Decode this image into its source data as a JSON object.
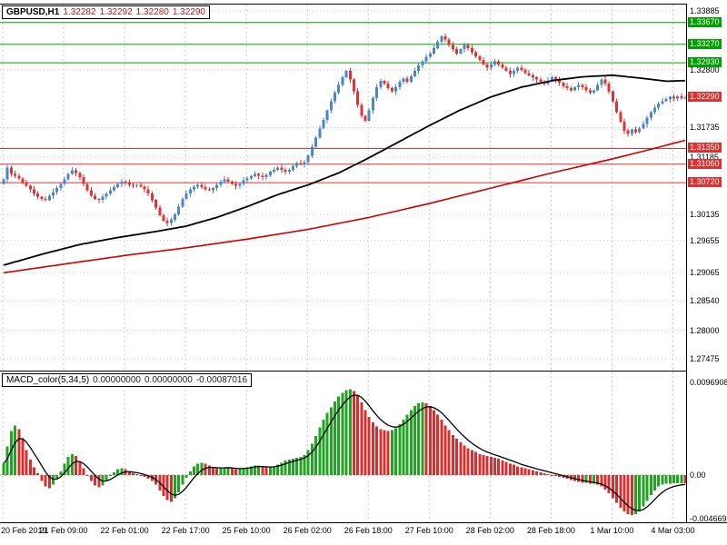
{
  "header": {
    "symbol": "GBPUSD,H1",
    "open": "1.32282",
    "high": "1.32292",
    "low": "1.32280",
    "close": "1.32290"
  },
  "macd_header": {
    "name": "MACD_color(5,34,5)",
    "value1": "0.00000000",
    "value2": "0.00000000",
    "value3": "-0.00087016"
  },
  "colors": {
    "bull": "#4a86c8",
    "bear": "#dc3434",
    "ma_fast": "#000000",
    "ma_slow": "#cc0000",
    "level_green": "#00a000",
    "level_red": "#e03030",
    "hist_up": "#1fa51f",
    "hist_down": "#d43030",
    "grid": "#c9c9c9",
    "signal": "#000000"
  },
  "chart_data": {
    "type": "candlestick",
    "symbol": "GBPUSD",
    "timeframe": "H1",
    "price_axis": {
      "max": 1.33885,
      "min": 1.27475,
      "ticks": [
        "1.33885",
        "1.32800",
        "1.31735",
        "1.31185",
        "1.30135",
        "1.29655",
        "1.29065",
        "1.28540",
        "1.28000",
        "1.27475"
      ]
    },
    "levels": [
      {
        "label": "1.33670",
        "price": 1.3367,
        "color": "green",
        "line": true
      },
      {
        "label": "1.33270",
        "price": 1.3327,
        "color": "green",
        "line": true
      },
      {
        "label": "1.32930",
        "price": 1.3293,
        "color": "green",
        "line": true
      },
      {
        "label": "1.32290",
        "price": 1.3229,
        "color": "red",
        "line": false,
        "current": true
      },
      {
        "label": "1.31350",
        "price": 1.3135,
        "color": "red",
        "line": true
      },
      {
        "label": "1.31060",
        "price": 1.3106,
        "color": "red",
        "line": true
      },
      {
        "label": "1.30720",
        "price": 1.3072,
        "color": "red",
        "line": true
      }
    ],
    "time_labels": [
      "20 Feb 2019",
      "21 Feb 09:00",
      "22 Feb 01:00",
      "22 Feb 17:00",
      "25 Feb 10:00",
      "26 Feb 02:00",
      "26 Feb 18:00",
      "27 Feb 10:00",
      "28 Feb 02:00",
      "28 Feb 18:00",
      "1 Mar 10:00",
      "4 Mar 03:00"
    ],
    "candles_per_gridline": 16,
    "first_open": 1.307,
    "closes": [
      1.3078,
      1.31,
      1.3088,
      1.3085,
      1.308,
      1.3072,
      1.3066,
      1.306,
      1.3052,
      1.3046,
      1.3042,
      1.304,
      1.3048,
      1.3055,
      1.3062,
      1.307,
      1.3078,
      1.3088,
      1.3095,
      1.309,
      1.3082,
      1.307,
      1.3058,
      1.3048,
      1.3042,
      1.304,
      1.3046,
      1.3052,
      1.3058,
      1.3064,
      1.307,
      1.3074,
      1.3072,
      1.3068,
      1.3066,
      1.3068,
      1.3065,
      1.306,
      1.3052,
      1.304,
      1.3026,
      1.3012,
      1.3002,
      1.2998,
      1.3004,
      1.3014,
      1.3028,
      1.3042,
      1.3052,
      1.306,
      1.3065,
      1.3068,
      1.3064,
      1.306,
      1.3058,
      1.3062,
      1.3068,
      1.3074,
      1.3078,
      1.3074,
      1.307,
      1.3066,
      1.307,
      1.3076,
      1.308,
      1.3084,
      1.3088,
      1.3085,
      1.3082,
      1.3086,
      1.3092,
      1.3096,
      1.31,
      1.3096,
      1.3092,
      1.3096,
      1.3102,
      1.3108,
      1.3106,
      1.311,
      1.3122,
      1.3138,
      1.3155,
      1.3172,
      1.3188,
      1.3205,
      1.3222,
      1.3238,
      1.3252,
      1.3266,
      1.3278,
      1.3262,
      1.324,
      1.3215,
      1.3195,
      1.3186,
      1.3205,
      1.3228,
      1.3248,
      1.326,
      1.3255,
      1.3246,
      1.324,
      1.3248,
      1.3258,
      1.3264,
      1.3258,
      1.3268,
      1.3278,
      1.3288,
      1.3296,
      1.3304,
      1.331,
      1.332,
      1.3332,
      1.3342,
      1.3336,
      1.3326,
      1.3318,
      1.331,
      1.3318,
      1.3326,
      1.332,
      1.3312,
      1.3305,
      1.3298,
      1.329,
      1.3284,
      1.329,
      1.3296,
      1.329,
      1.3284,
      1.3278,
      1.3272,
      1.3278,
      1.3284,
      1.328,
      1.3274,
      1.327,
      1.3266,
      1.3262,
      1.3258,
      1.3254,
      1.326,
      1.3266,
      1.3262,
      1.3256,
      1.325,
      1.3246,
      1.3242,
      1.3248,
      1.3252,
      1.3248,
      1.3242,
      1.3238,
      1.3242,
      1.3252,
      1.3262,
      1.3255,
      1.324,
      1.3222,
      1.3202,
      1.3184,
      1.3168,
      1.3162,
      1.317,
      1.3165,
      1.3172,
      1.318,
      1.3192,
      1.3202,
      1.321,
      1.3218,
      1.3222,
      1.3226,
      1.323,
      1.3227,
      1.3231,
      1.3228,
      1.3229
    ],
    "ma_fast_anchors": [
      [
        0,
        1.292
      ],
      [
        10,
        1.294
      ],
      [
        20,
        1.2958
      ],
      [
        30,
        1.2971
      ],
      [
        40,
        1.2982
      ],
      [
        48,
        1.2992
      ],
      [
        56,
        1.3008
      ],
      [
        64,
        1.3028
      ],
      [
        72,
        1.305
      ],
      [
        80,
        1.3068
      ],
      [
        88,
        1.309
      ],
      [
        96,
        1.3118
      ],
      [
        104,
        1.3148
      ],
      [
        112,
        1.3178
      ],
      [
        120,
        1.3206
      ],
      [
        128,
        1.323
      ],
      [
        136,
        1.3248
      ],
      [
        144,
        1.326
      ],
      [
        152,
        1.3267
      ],
      [
        160,
        1.327
      ],
      [
        168,
        1.3264
      ],
      [
        174,
        1.3259
      ],
      [
        179,
        1.326
      ]
    ],
    "ma_slow_anchors": [
      [
        0,
        1.2906
      ],
      [
        16,
        1.2922
      ],
      [
        32,
        1.2938
      ],
      [
        48,
        1.2952
      ],
      [
        64,
        1.2968
      ],
      [
        80,
        1.2986
      ],
      [
        96,
        1.3008
      ],
      [
        112,
        1.3034
      ],
      [
        128,
        1.3062
      ],
      [
        144,
        1.309
      ],
      [
        152,
        1.3103
      ],
      [
        160,
        1.3116
      ],
      [
        168,
        1.313
      ],
      [
        174,
        1.3141
      ],
      [
        179,
        1.315
      ]
    ],
    "macd": {
      "axis_max_label": "0.0096908",
      "axis_zero_label": "0.00",
      "axis_min_label": "-0.004669",
      "axis_max": 0.0096908,
      "axis_min": -0.004669,
      "hist": [
        0.0012,
        0.003,
        0.0046,
        0.0052,
        0.0048,
        0.0038,
        0.0026,
        0.0016,
        0.0008,
        0.0002,
        -0.0006,
        -0.0012,
        -0.0014,
        -0.001,
        -0.0004,
        0.0004,
        0.0012,
        0.0019,
        0.0022,
        0.002,
        0.0014,
        0.0007,
        0,
        -0.0006,
        -0.0011,
        -0.0013,
        -0.0011,
        -0.0006,
        -0.0001,
        0.0003,
        0.0006,
        0.0007,
        0.0006,
        0.0004,
        0.0002,
        0.0001,
        0,
        -0.0002,
        -0.0004,
        -0.0006,
        -0.001,
        -0.0016,
        -0.0022,
        -0.0026,
        -0.0028,
        -0.0024,
        -0.0018,
        -0.001,
        -0.0003,
        0.0004,
        0.0009,
        0.0012,
        0.0013,
        0.0012,
        0.001,
        0.0008,
        0.0007,
        0.0007,
        0.0008,
        0.0008,
        0.0007,
        0.0006,
        0.0006,
        0.0007,
        0.0008,
        0.0009,
        0.001,
        0.001,
        0.0009,
        0.0008,
        0.0008,
        0.0009,
        0.0011,
        0.0013,
        0.0015,
        0.0016,
        0.0017,
        0.0018,
        0.0019,
        0.0021,
        0.0026,
        0.0033,
        0.0041,
        0.005,
        0.0058,
        0.0065,
        0.0071,
        0.0077,
        0.0082,
        0.0086,
        0.0089,
        0.009,
        0.0088,
        0.0083,
        0.0076,
        0.0068,
        0.0061,
        0.0055,
        0.0051,
        0.0048,
        0.0047,
        0.0046,
        0.0047,
        0.0049,
        0.0053,
        0.0058,
        0.0063,
        0.0068,
        0.0072,
        0.0075,
        0.0076,
        0.0075,
        0.0072,
        0.0068,
        0.0063,
        0.0058,
        0.0052,
        0.0047,
        0.0042,
        0.0038,
        0.0034,
        0.0031,
        0.0028,
        0.0026,
        0.0024,
        0.0022,
        0.0021,
        0.002,
        0.0019,
        0.0018,
        0.0017,
        0.0015,
        0.0014,
        0.0012,
        0.0011,
        0.0009,
        0.0008,
        0.0007,
        0.0006,
        0.0005,
        0.0004,
        0.0003,
        0.0002,
        0.0001,
        0,
        -0.0001,
        -0.0002,
        -0.0003,
        -0.0004,
        -0.0005,
        -0.0006,
        -0.0007,
        -0.0008,
        -0.0008,
        -0.0009,
        -0.0009,
        -0.001,
        -0.0012,
        -0.0015,
        -0.0019,
        -0.0024,
        -0.0029,
        -0.0034,
        -0.0038,
        -0.0041,
        -0.0042,
        -0.0041,
        -0.0038,
        -0.0033,
        -0.0027,
        -0.0021,
        -0.0016,
        -0.0012,
        -0.001,
        -0.0009,
        -0.00088,
        -0.00087,
        -0.00087,
        -0.00087,
        -0.00087016
      ]
    }
  }
}
